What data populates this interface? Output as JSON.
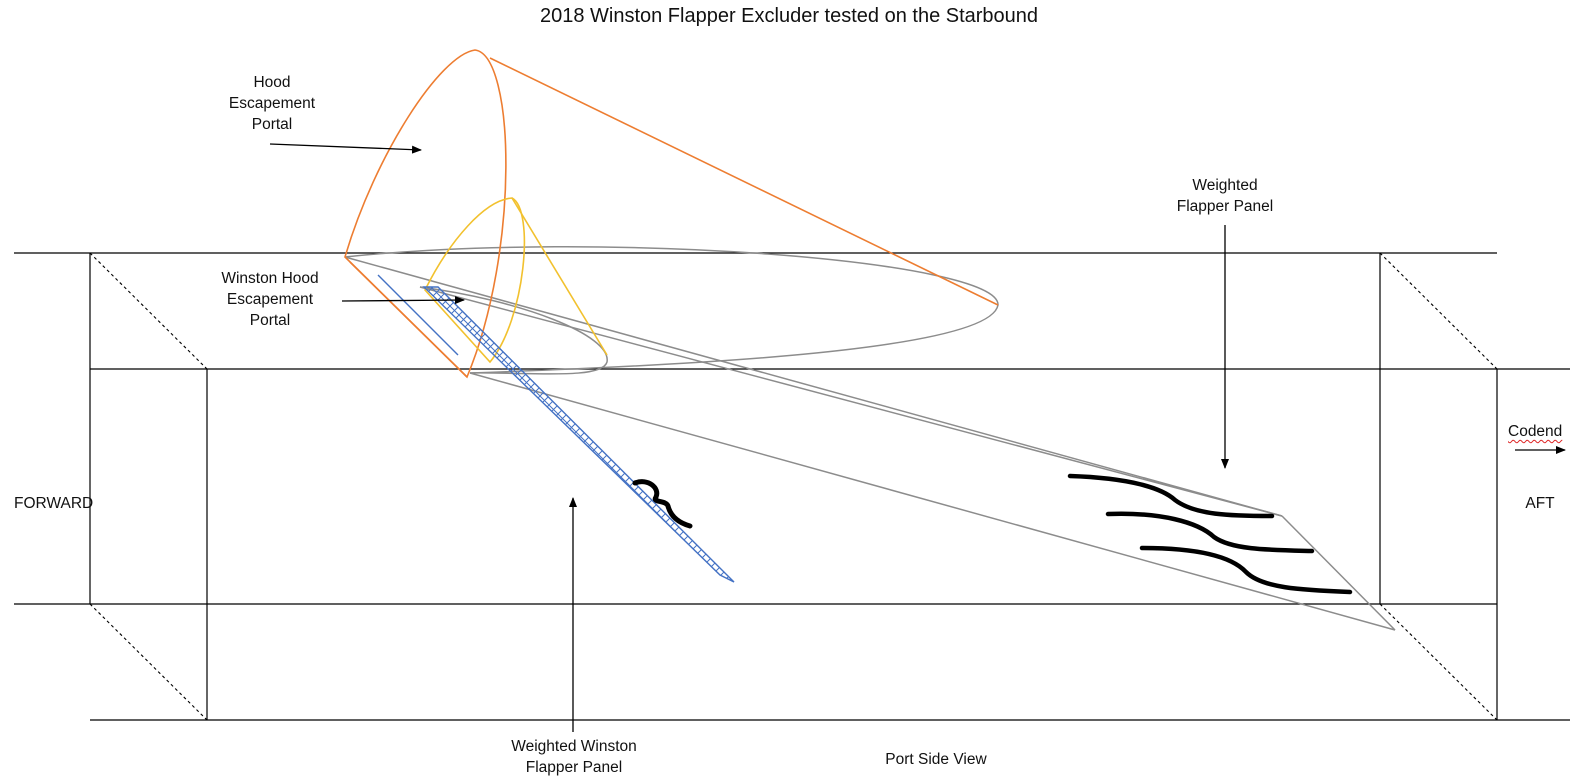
{
  "title": "2018 Winston Flapper Excluder tested on the Starbound",
  "labels": {
    "hood_portal": [
      "Hood",
      "Escapement",
      "Portal"
    ],
    "winston_hood_portal": [
      "Winston Hood",
      "Escapement",
      "Portal"
    ],
    "weighted_flapper_panel": [
      "Weighted",
      "Flapper Panel"
    ],
    "weighted_winston_flapper_panel": [
      "Weighted Winston",
      "Flapper Panel"
    ],
    "forward": "FORWARD",
    "aft": "AFT",
    "codend": "Codend",
    "view": "Port Side View"
  },
  "colors": {
    "frame": "#000000",
    "hood_outline": "#ed7d31",
    "winston_hood_outline": "#f2c12e",
    "funnel_outline": "#8c8c8c",
    "winston_panel": "#4472c4",
    "flapper": "#000000"
  }
}
